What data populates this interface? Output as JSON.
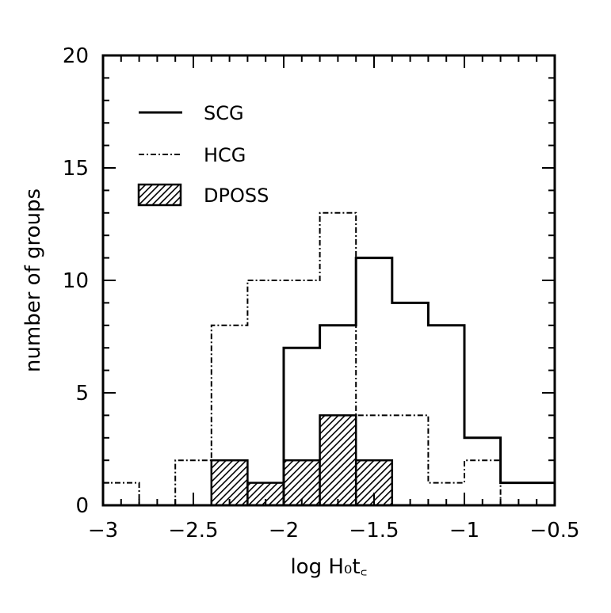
{
  "chart_data": {
    "type": "histogram",
    "xlabel": "log H₀t꜀",
    "ylabel": "number of groups",
    "xlim": [
      -3,
      -0.5
    ],
    "ylim": [
      0,
      20
    ],
    "x_ticks": [
      "−3",
      "−2.5",
      "−2",
      "−1.5",
      "−1",
      "−0.5"
    ],
    "x_tick_values": [
      -3,
      -2.5,
      -2,
      -1.5,
      -1,
      -0.5
    ],
    "y_ticks": [
      "0",
      "5",
      "10",
      "15",
      "20"
    ],
    "y_tick_values": [
      0,
      5,
      10,
      15,
      20
    ],
    "bin_edges": [
      -3.0,
      -2.8,
      -2.6,
      -2.4,
      -2.2,
      -2.0,
      -1.8,
      -1.6,
      -1.4,
      -1.2,
      -1.0,
      -0.8,
      -0.6,
      -0.5
    ],
    "series": [
      {
        "name": "SCG",
        "style": "solid",
        "values": [
          0,
          0,
          0,
          0,
          0,
          7,
          8,
          11,
          9,
          8,
          3,
          1,
          1
        ]
      },
      {
        "name": "HCG",
        "style": "dot-dash",
        "values": [
          1,
          0,
          2,
          8,
          10,
          10,
          13,
          4,
          4,
          1,
          2,
          0,
          0
        ]
      },
      {
        "name": "DPOSS",
        "style": "hatched",
        "values": [
          0,
          0,
          0,
          2,
          1,
          2,
          4,
          2,
          0,
          0,
          0,
          0,
          0
        ]
      }
    ],
    "legend": {
      "placement": "top-left",
      "entries": [
        {
          "label": "SCG",
          "style": "solid"
        },
        {
          "label": "HCG",
          "style": "dot-dash"
        },
        {
          "label": "DPOSS",
          "style": "hatched"
        }
      ]
    },
    "grid": false,
    "colors": {
      "line": "#000000",
      "background": "#ffffff"
    }
  }
}
